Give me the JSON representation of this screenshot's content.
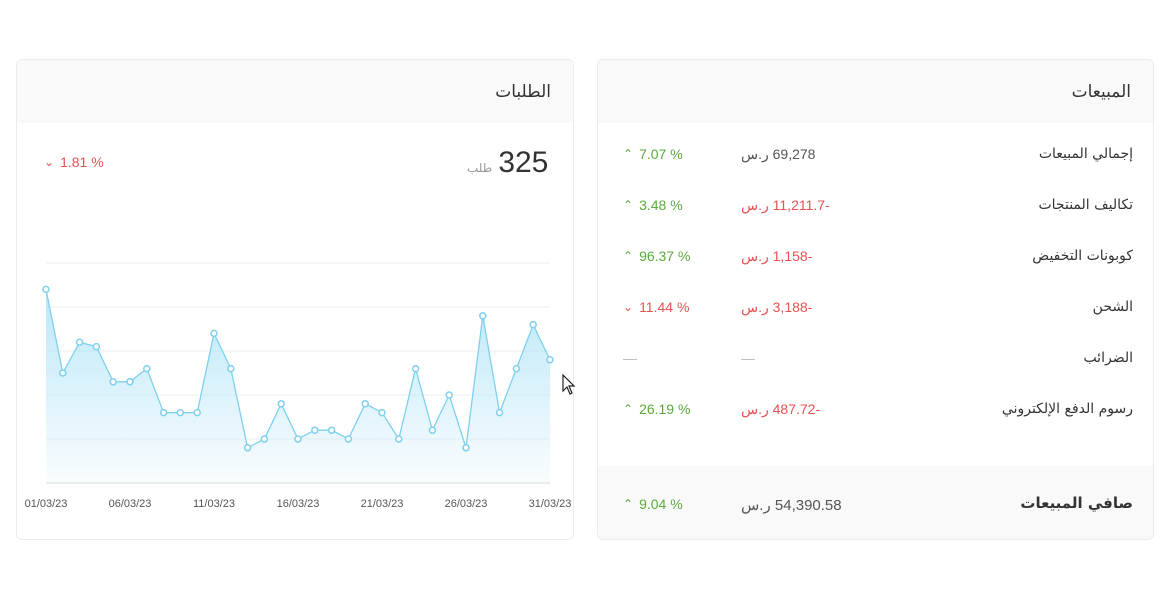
{
  "orders": {
    "title": "الطلبات",
    "count": "325",
    "count_unit": "طلب",
    "change": "1.81 %",
    "change_direction": "down",
    "chevron_down_icon": "chevron-down-icon"
  },
  "chart_data": {
    "type": "area",
    "x_ticks": [
      "01/03/23",
      "06/03/23",
      "11/03/23",
      "16/03/23",
      "21/03/23",
      "26/03/23",
      "31/03/23"
    ],
    "values": [
      22,
      12.5,
      16,
      15.5,
      11.5,
      11.5,
      13,
      8,
      8,
      8,
      17,
      13,
      4,
      5,
      9,
      5,
      6,
      6,
      5,
      9,
      8,
      5,
      13,
      6,
      10,
      4,
      19,
      8,
      13,
      18,
      14
    ],
    "ylim": [
      0,
      25
    ],
    "grid": true,
    "line_color": "#7fd0ee",
    "fill_color": "#b7e6f8"
  },
  "sales": {
    "title": "المبيعات",
    "rows": [
      {
        "label": "إجمالي المبيعات",
        "amount": "69,278 ر.س",
        "amount_type": "pos",
        "pct": "7.07 %",
        "dir": "up"
      },
      {
        "label": "تكاليف المنتجات",
        "amount": "-11,211.7 ر.س",
        "amount_type": "neg",
        "pct": "3.48 %",
        "dir": "up"
      },
      {
        "label": "كوبونات التخفيض",
        "amount": "-1,158 ر.س",
        "amount_type": "neg",
        "pct": "96.37 %",
        "dir": "up"
      },
      {
        "label": "الشحن",
        "amount": "-3,188 ر.س",
        "amount_type": "neg",
        "pct": "11.44 %",
        "dir": "down"
      },
      {
        "label": "الضرائب",
        "amount": "—",
        "amount_type": "dash",
        "pct": "—",
        "dir": "none"
      },
      {
        "label": "رسوم الدفع الإلكتروني",
        "amount": "-487.72 ر.س",
        "amount_type": "neg",
        "pct": "26.19 %",
        "dir": "up"
      }
    ],
    "net": {
      "label": "صافي المبيعات",
      "amount": "54,390.58 ر.س",
      "pct": "9.04 %",
      "dir": "up"
    }
  },
  "colors": {
    "up": "#5aaa3c",
    "down": "#e55353",
    "accent": "#7fd0ee"
  }
}
